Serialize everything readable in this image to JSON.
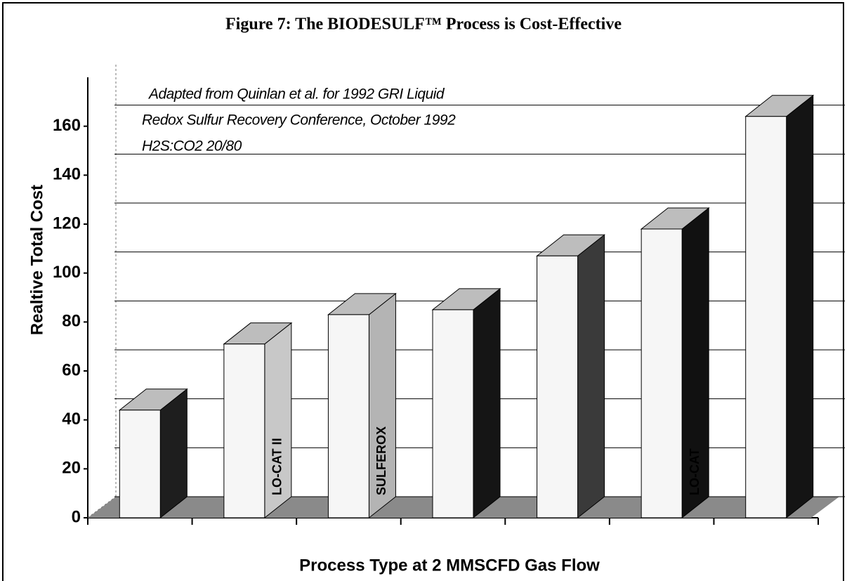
{
  "chart_data": {
    "type": "bar3d",
    "title": "Figure 7: The BIODESULF™ Process is Cost-Effective",
    "annotation": [
      "Adapted from Quinlan et al. for 1992 GRI Liquid",
      "Redox Sulfur Recovery Conference, October 1992",
      "H2S:CO2  20/80"
    ],
    "y_label": "Realtive Total Cost",
    "x_label": "Process Type at 2 MMSCFD Gas Flow",
    "categories": [
      null,
      "LO-CAT II",
      "SULFEROX",
      null,
      null,
      "LO-CAT",
      null
    ],
    "values": [
      44,
      71,
      83,
      85,
      107,
      118,
      164
    ],
    "color": "#f6f6f6",
    "side_colors": [
      "#1e1e1e",
      "#c8c8c8",
      "#b4b4b4",
      "#151515",
      "#3a3a3a",
      "#111111",
      "#141414"
    ],
    "ylim": [
      0,
      180
    ],
    "yticks": [
      0,
      20,
      40,
      60,
      80,
      100,
      120,
      140,
      160
    ],
    "grid": true
  }
}
